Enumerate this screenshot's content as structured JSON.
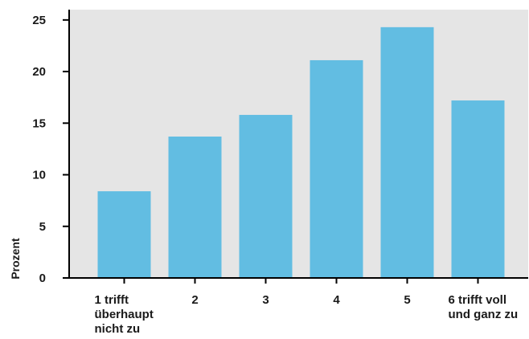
{
  "chart_data": {
    "type": "bar",
    "categories": [
      [
        "1 trifft",
        "überhaupt",
        "nicht zu"
      ],
      [
        "2"
      ],
      [
        "3"
      ],
      [
        "4"
      ],
      [
        "5"
      ],
      [
        "6 trifft voll",
        "und ganz zu"
      ]
    ],
    "values": [
      8.4,
      13.7,
      15.8,
      21.1,
      24.3,
      17.2
    ],
    "title": "",
    "xlabel": "",
    "ylabel": "Prozent",
    "ylim": [
      0,
      26
    ],
    "yticks": [
      0,
      5,
      10,
      15,
      20,
      25
    ],
    "grid": false,
    "colors": {
      "bar": "#62bde2",
      "plot_background": "#e5e5e5",
      "axis": "#000000"
    }
  }
}
